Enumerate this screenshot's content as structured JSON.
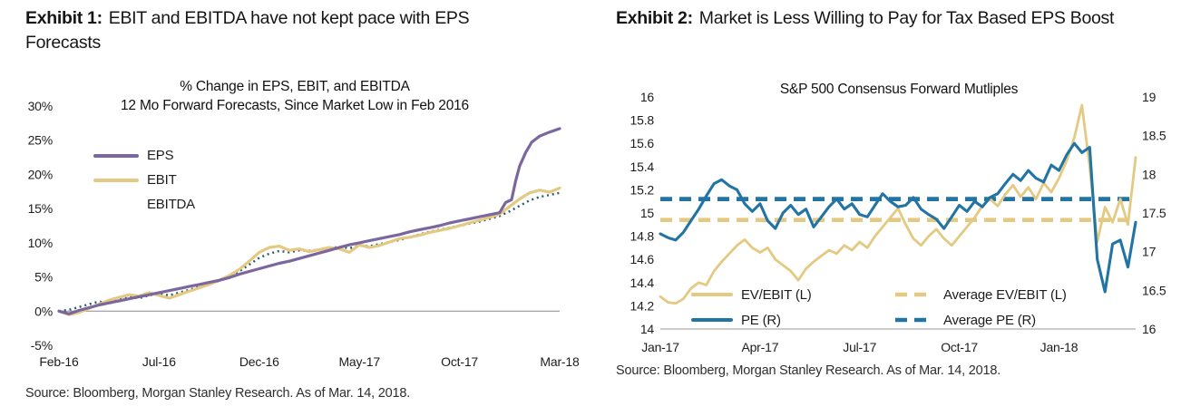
{
  "panels": [
    {
      "exhibit_label": "Exhibit 1:",
      "exhibit_title": "EBIT and EBITDA have not kept pace with EPS Forecasts",
      "source": "Source: Bloomberg, Morgan Stanley Research. As of Mar. 14, 2018."
    },
    {
      "exhibit_label": "Exhibit 2:",
      "exhibit_title": "Market is Less Willing to Pay for Tax Based EPS Boost",
      "source": "Source: Bloomberg, Morgan Stanley Research. As of Mar. 14, 2018."
    }
  ],
  "colors": {
    "eps_purple": "#7B679E",
    "ebit_gold": "#E3C981",
    "ebitda_teal": "#2E5F66",
    "pe_blue": "#2274A5",
    "gridline": "#8a8a8a",
    "axisline": "#999999"
  },
  "chart_data": [
    {
      "type": "line",
      "title": [
        "% Change in EPS, EBIT, and EBITDA",
        "12 Mo Forward Forecasts, Since Market Low in Feb 2016"
      ],
      "x_ticks": [
        "Feb-16",
        "Jul-16",
        "Dec-16",
        "May-17",
        "Oct-17",
        "Mar-18"
      ],
      "x_tick_positions": [
        0,
        5,
        10,
        15,
        20,
        25
      ],
      "x_range": [
        0,
        25
      ],
      "y_axis": {
        "ticks": [
          "30%",
          "25%",
          "20%",
          "15%",
          "10%",
          "5%",
          "0%",
          "-5%"
        ],
        "tick_values": [
          30,
          25,
          20,
          15,
          10,
          5,
          0,
          -5
        ],
        "range": [
          -5,
          30
        ]
      },
      "gridline_at": 0,
      "grid": false,
      "legend_position": "upper-left-inside",
      "legend": [
        {
          "label": "EPS",
          "color": "#7B679E",
          "style": "solid"
        },
        {
          "label": "EBIT",
          "color": "#E3C981",
          "style": "solid"
        },
        {
          "label": "EBITDA",
          "color": "#2E5F66",
          "style": "none"
        }
      ],
      "series": [
        {
          "name": "EBITDA",
          "color": "#2E5F66",
          "style": "dotted",
          "width": 2.5,
          "points": [
            [
              0,
              0
            ],
            [
              0.5,
              0.2
            ],
            [
              1,
              0.6
            ],
            [
              1.5,
              1.0
            ],
            [
              2,
              1.4
            ],
            [
              2.5,
              1.1
            ],
            [
              3,
              1.7
            ],
            [
              3.5,
              2.1
            ],
            [
              4,
              1.9
            ],
            [
              4.5,
              2.3
            ],
            [
              5,
              2.6
            ],
            [
              5.5,
              2.3
            ],
            [
              6,
              2.7
            ],
            [
              6.5,
              3.1
            ],
            [
              7,
              3.6
            ],
            [
              7.5,
              4.0
            ],
            [
              8,
              4.4
            ],
            [
              8.5,
              5.0
            ],
            [
              9,
              5.8
            ],
            [
              9.5,
              6.8
            ],
            [
              10,
              7.8
            ],
            [
              10.5,
              8.4
            ],
            [
              11,
              8.8
            ],
            [
              11.5,
              8.6
            ],
            [
              12,
              8.9
            ],
            [
              12.5,
              8.8
            ],
            [
              13,
              9.0
            ],
            [
              13.5,
              9.2
            ],
            [
              14,
              9.4
            ],
            [
              14.5,
              9.2
            ],
            [
              15,
              9.6
            ],
            [
              15.5,
              9.5
            ],
            [
              16,
              9.8
            ],
            [
              16.5,
              10.1
            ],
            [
              17,
              10.4
            ],
            [
              17.5,
              10.8
            ],
            [
              18,
              11.2
            ],
            [
              18.5,
              11.6
            ],
            [
              19,
              11.9
            ],
            [
              19.5,
              12.2
            ],
            [
              20,
              12.5
            ],
            [
              20.5,
              12.8
            ],
            [
              21,
              13.1
            ],
            [
              21.5,
              13.5
            ],
            [
              22,
              13.9
            ],
            [
              22.5,
              14.6
            ],
            [
              23,
              15.4
            ],
            [
              23.5,
              16.2
            ],
            [
              24,
              16.7
            ],
            [
              24.5,
              17.0
            ],
            [
              25,
              17.3
            ]
          ]
        },
        {
          "name": "EBIT",
          "color": "#E3C981",
          "style": "solid",
          "width": 3.2,
          "points": [
            [
              0,
              0
            ],
            [
              0.5,
              -0.5
            ],
            [
              1,
              -0.2
            ],
            [
              1.5,
              0.4
            ],
            [
              2,
              1.0
            ],
            [
              2.5,
              1.6
            ],
            [
              3,
              2.0
            ],
            [
              3.5,
              2.4
            ],
            [
              4,
              2.2
            ],
            [
              4.5,
              2.7
            ],
            [
              5,
              2.3
            ],
            [
              5.5,
              1.9
            ],
            [
              6,
              2.4
            ],
            [
              6.5,
              2.9
            ],
            [
              7,
              3.4
            ],
            [
              7.5,
              3.9
            ],
            [
              8,
              4.5
            ],
            [
              8.5,
              5.2
            ],
            [
              9,
              6.1
            ],
            [
              9.5,
              7.3
            ],
            [
              10,
              8.6
            ],
            [
              10.5,
              9.3
            ],
            [
              11,
              9.5
            ],
            [
              11.5,
              8.9
            ],
            [
              12,
              9.1
            ],
            [
              12.5,
              8.7
            ],
            [
              13,
              9.0
            ],
            [
              13.5,
              9.3
            ],
            [
              14,
              9.1
            ],
            [
              14.5,
              8.6
            ],
            [
              15,
              9.7
            ],
            [
              15.5,
              9.3
            ],
            [
              16,
              9.6
            ],
            [
              16.5,
              10.1
            ],
            [
              17,
              10.6
            ],
            [
              17.5,
              10.8
            ],
            [
              18,
              11.1
            ],
            [
              18.5,
              11.5
            ],
            [
              19,
              11.8
            ],
            [
              19.5,
              12.1
            ],
            [
              20,
              12.5
            ],
            [
              20.5,
              12.9
            ],
            [
              21,
              13.3
            ],
            [
              21.5,
              13.7
            ],
            [
              22,
              14.2
            ],
            [
              22.5,
              15.3
            ],
            [
              23,
              16.4
            ],
            [
              23.5,
              17.3
            ],
            [
              24,
              17.7
            ],
            [
              24.5,
              17.4
            ],
            [
              25,
              18.0
            ]
          ]
        },
        {
          "name": "EPS",
          "color": "#7B679E",
          "style": "solid",
          "width": 3.2,
          "points": [
            [
              0,
              0
            ],
            [
              0.5,
              -0.4
            ],
            [
              1,
              0.1
            ],
            [
              1.5,
              0.5
            ],
            [
              2,
              0.9
            ],
            [
              2.5,
              1.2
            ],
            [
              3,
              1.5
            ],
            [
              3.5,
              1.8
            ],
            [
              4,
              2.1
            ],
            [
              4.5,
              2.4
            ],
            [
              5,
              2.7
            ],
            [
              5.5,
              3.0
            ],
            [
              6,
              3.3
            ],
            [
              6.5,
              3.6
            ],
            [
              7,
              3.9
            ],
            [
              7.5,
              4.2
            ],
            [
              8,
              4.5
            ],
            [
              8.5,
              4.9
            ],
            [
              9,
              5.4
            ],
            [
              9.5,
              5.8
            ],
            [
              10,
              6.2
            ],
            [
              10.5,
              6.6
            ],
            [
              11,
              7.0
            ],
            [
              11.5,
              7.3
            ],
            [
              12,
              7.7
            ],
            [
              12.5,
              8.1
            ],
            [
              13,
              8.5
            ],
            [
              13.5,
              8.9
            ],
            [
              14,
              9.3
            ],
            [
              14.5,
              9.7
            ],
            [
              15,
              10.0
            ],
            [
              15.5,
              10.3
            ],
            [
              16,
              10.6
            ],
            [
              16.5,
              10.9
            ],
            [
              17,
              11.2
            ],
            [
              17.5,
              11.6
            ],
            [
              18,
              11.9
            ],
            [
              18.5,
              12.2
            ],
            [
              19,
              12.5
            ],
            [
              19.5,
              12.9
            ],
            [
              20,
              13.2
            ],
            [
              20.5,
              13.5
            ],
            [
              21,
              13.8
            ],
            [
              21.5,
              14.1
            ],
            [
              22,
              14.4
            ],
            [
              22.3,
              15.9
            ],
            [
              22.6,
              16.3
            ],
            [
              22.8,
              19.0
            ],
            [
              23,
              21.2
            ],
            [
              23.3,
              23.2
            ],
            [
              23.6,
              24.7
            ],
            [
              24,
              25.6
            ],
            [
              24.5,
              26.2
            ],
            [
              25,
              26.7
            ]
          ]
        }
      ]
    },
    {
      "type": "line",
      "title": [
        "S&P 500 Consensus Forward Mutliples"
      ],
      "x_ticks": [
        "Jan-17",
        "Apr-17",
        "Jul-17",
        "Oct-17",
        "Jan-18"
      ],
      "x_tick_positions": [
        0,
        13,
        26,
        39,
        52
      ],
      "x_range": [
        0,
        62
      ],
      "left_axis": {
        "ticks": [
          "16",
          "15.8",
          "15.6",
          "15.4",
          "15.2",
          "15",
          "14.8",
          "14.6",
          "14.4",
          "14.2",
          "14"
        ],
        "tick_values": [
          16,
          15.8,
          15.6,
          15.4,
          15.2,
          15,
          14.8,
          14.6,
          14.4,
          14.2,
          14
        ],
        "range": [
          14,
          16
        ]
      },
      "right_axis": {
        "ticks": [
          "19",
          "18.5",
          "18",
          "17.5",
          "17",
          "16.5",
          "16"
        ],
        "tick_values": [
          19,
          18.5,
          18,
          17.5,
          17,
          16.5,
          16
        ],
        "range": [
          16,
          19
        ]
      },
      "grid": false,
      "legend_position": "lower-inside-two-column",
      "legend": [
        {
          "label": "EV/EBIT (L)",
          "color": "#E3C981",
          "style": "solid"
        },
        {
          "label": "Average EV/EBIT (L)",
          "color": "#E3C981",
          "style": "dashed"
        },
        {
          "label": "PE (R)",
          "color": "#2274A5",
          "style": "solid"
        },
        {
          "label": "Average PE (R)",
          "color": "#2274A5",
          "style": "dashed"
        }
      ],
      "series": [
        {
          "name": "Average EV/EBIT (L)",
          "axis": "left",
          "color": "#E3C981",
          "style": "dashed",
          "width": 4.6,
          "constant": 14.94
        },
        {
          "name": "Average PE (R)",
          "axis": "right",
          "color": "#2274A5",
          "style": "dashed",
          "width": 4.8,
          "constant": 17.68
        },
        {
          "name": "EV/EBIT (L)",
          "axis": "left",
          "color": "#E3C981",
          "style": "solid",
          "width": 2.8,
          "values": [
            14.28,
            14.23,
            14.22,
            14.26,
            14.35,
            14.4,
            14.38,
            14.5,
            14.58,
            14.65,
            14.72,
            14.77,
            14.7,
            14.66,
            14.7,
            14.6,
            14.55,
            14.5,
            14.42,
            14.52,
            14.58,
            14.63,
            14.68,
            14.65,
            14.72,
            14.68,
            14.75,
            14.7,
            14.8,
            14.88,
            14.96,
            15.04,
            14.9,
            14.78,
            14.72,
            14.8,
            14.86,
            14.78,
            14.72,
            14.8,
            14.88,
            14.96,
            15.06,
            15.12,
            15.06,
            15.16,
            15.24,
            15.14,
            15.22,
            15.12,
            15.26,
            15.18,
            15.3,
            15.45,
            15.65,
            15.93,
            15.4,
            14.75,
            15.05,
            14.92,
            15.12,
            14.9,
            15.48
          ]
        },
        {
          "name": "PE (R)",
          "axis": "right",
          "color": "#2274A5",
          "style": "solid",
          "width": 3.1,
          "values": [
            17.23,
            17.18,
            17.15,
            17.25,
            17.4,
            17.55,
            17.72,
            17.88,
            17.93,
            17.85,
            17.8,
            17.62,
            17.52,
            17.62,
            17.4,
            17.3,
            17.5,
            17.6,
            17.48,
            17.55,
            17.32,
            17.45,
            17.58,
            17.68,
            17.55,
            17.62,
            17.48,
            17.45,
            17.6,
            17.75,
            17.65,
            17.58,
            17.6,
            17.7,
            17.55,
            17.48,
            17.42,
            17.3,
            17.45,
            17.6,
            17.52,
            17.65,
            17.58,
            17.7,
            17.75,
            17.88,
            18.0,
            17.92,
            18.05,
            17.95,
            17.9,
            18.12,
            18.05,
            18.25,
            18.4,
            18.28,
            18.35,
            16.9,
            16.48,
            17.1,
            17.15,
            16.8,
            17.38
          ]
        }
      ]
    }
  ]
}
